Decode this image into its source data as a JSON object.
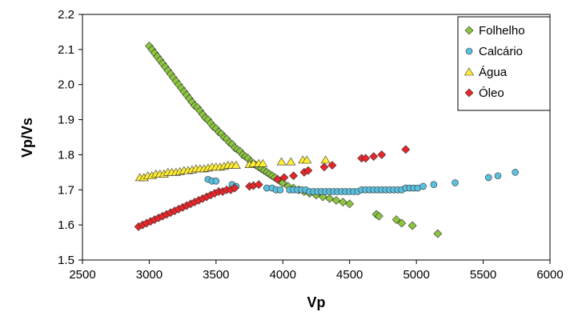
{
  "chart_data": {
    "type": "scatter",
    "title": "",
    "xlabel": "Vp",
    "ylabel": "Vp/Vs",
    "xlim": [
      2500,
      6000
    ],
    "ylim": [
      1.5,
      2.2
    ],
    "x_ticks": [
      "2500",
      "3000",
      "3500",
      "4000",
      "4500",
      "5000",
      "5500",
      "6000"
    ],
    "y_ticks": [
      "1.5",
      "1.6",
      "1.7",
      "1.8",
      "1.9",
      "2.0",
      "2.1",
      "2.2"
    ],
    "grid": false,
    "legend_position": "top-right",
    "series": [
      {
        "name": "Folhelho",
        "marker": "diamond",
        "color": "#8cc63f",
        "points": [
          [
            3000,
            2.11
          ],
          [
            3020,
            2.1
          ],
          [
            3040,
            2.09
          ],
          [
            3060,
            2.08
          ],
          [
            3080,
            2.07
          ],
          [
            3100,
            2.06
          ],
          [
            3120,
            2.05
          ],
          [
            3140,
            2.04
          ],
          [
            3160,
            2.03
          ],
          [
            3180,
            2.02
          ],
          [
            3200,
            2.01
          ],
          [
            3220,
            2.0
          ],
          [
            3240,
            1.99
          ],
          [
            3260,
            1.98
          ],
          [
            3280,
            1.97
          ],
          [
            3300,
            1.96
          ],
          [
            3320,
            1.95
          ],
          [
            3340,
            1.94
          ],
          [
            3360,
            1.935
          ],
          [
            3380,
            1.925
          ],
          [
            3400,
            1.915
          ],
          [
            3420,
            1.905
          ],
          [
            3440,
            1.9
          ],
          [
            3460,
            1.89
          ],
          [
            3480,
            1.88
          ],
          [
            3500,
            1.875
          ],
          [
            3520,
            1.865
          ],
          [
            3540,
            1.86
          ],
          [
            3560,
            1.85
          ],
          [
            3580,
            1.845
          ],
          [
            3600,
            1.835
          ],
          [
            3620,
            1.83
          ],
          [
            3640,
            1.82
          ],
          [
            3660,
            1.815
          ],
          [
            3680,
            1.81
          ],
          [
            3700,
            1.8
          ],
          [
            3720,
            1.795
          ],
          [
            3740,
            1.79
          ],
          [
            3760,
            1.78
          ],
          [
            3780,
            1.775
          ],
          [
            3800,
            1.77
          ],
          [
            3820,
            1.765
          ],
          [
            3840,
            1.76
          ],
          [
            3860,
            1.755
          ],
          [
            3880,
            1.75
          ],
          [
            3900,
            1.745
          ],
          [
            3920,
            1.74
          ],
          [
            3940,
            1.735
          ],
          [
            3960,
            1.73
          ],
          [
            3980,
            1.725
          ],
          [
            4000,
            1.72
          ],
          [
            4040,
            1.71
          ],
          [
            4080,
            1.705
          ],
          [
            4120,
            1.7
          ],
          [
            4160,
            1.695
          ],
          [
            4200,
            1.69
          ],
          [
            4250,
            1.685
          ],
          [
            4300,
            1.68
          ],
          [
            4350,
            1.675
          ],
          [
            4400,
            1.67
          ],
          [
            4450,
            1.665
          ],
          [
            4500,
            1.66
          ],
          [
            4700,
            1.63
          ],
          [
            4720,
            1.625
          ],
          [
            4850,
            1.615
          ],
          [
            4890,
            1.605
          ],
          [
            4970,
            1.598
          ],
          [
            5160,
            1.575
          ]
        ]
      },
      {
        "name": "Calcário",
        "marker": "circle",
        "color": "#5bc0de",
        "points": [
          [
            3440,
            1.73
          ],
          [
            3470,
            1.725
          ],
          [
            3500,
            1.725
          ],
          [
            3620,
            1.715
          ],
          [
            3650,
            1.71
          ],
          [
            3880,
            1.705
          ],
          [
            3920,
            1.705
          ],
          [
            3950,
            1.7
          ],
          [
            3980,
            1.7
          ],
          [
            4050,
            1.7
          ],
          [
            4080,
            1.7
          ],
          [
            4110,
            1.7
          ],
          [
            4140,
            1.7
          ],
          [
            4170,
            1.7
          ],
          [
            4200,
            1.695
          ],
          [
            4230,
            1.695
          ],
          [
            4260,
            1.695
          ],
          [
            4290,
            1.695
          ],
          [
            4320,
            1.695
          ],
          [
            4350,
            1.695
          ],
          [
            4380,
            1.695
          ],
          [
            4410,
            1.695
          ],
          [
            4440,
            1.695
          ],
          [
            4470,
            1.695
          ],
          [
            4500,
            1.695
          ],
          [
            4530,
            1.695
          ],
          [
            4560,
            1.695
          ],
          [
            4590,
            1.7
          ],
          [
            4620,
            1.7
          ],
          [
            4650,
            1.7
          ],
          [
            4680,
            1.7
          ],
          [
            4710,
            1.7
          ],
          [
            4740,
            1.7
          ],
          [
            4770,
            1.7
          ],
          [
            4800,
            1.7
          ],
          [
            4830,
            1.7
          ],
          [
            4860,
            1.7
          ],
          [
            4890,
            1.7
          ],
          [
            4920,
            1.705
          ],
          [
            4950,
            1.705
          ],
          [
            4980,
            1.705
          ],
          [
            5010,
            1.705
          ],
          [
            5050,
            1.71
          ],
          [
            5130,
            1.715
          ],
          [
            5290,
            1.72
          ],
          [
            5540,
            1.735
          ],
          [
            5610,
            1.74
          ],
          [
            5740,
            1.75
          ]
        ]
      },
      {
        "name": "Água",
        "marker": "triangle",
        "color": "#ffee33",
        "points": [
          [
            2930,
            1.735
          ],
          [
            2960,
            1.735
          ],
          [
            2990,
            1.74
          ],
          [
            3020,
            1.74
          ],
          [
            3050,
            1.745
          ],
          [
            3080,
            1.745
          ],
          [
            3110,
            1.745
          ],
          [
            3140,
            1.75
          ],
          [
            3170,
            1.75
          ],
          [
            3200,
            1.75
          ],
          [
            3230,
            1.752
          ],
          [
            3260,
            1.755
          ],
          [
            3290,
            1.755
          ],
          [
            3320,
            1.757
          ],
          [
            3350,
            1.76
          ],
          [
            3380,
            1.76
          ],
          [
            3410,
            1.76
          ],
          [
            3440,
            1.762
          ],
          [
            3470,
            1.765
          ],
          [
            3500,
            1.765
          ],
          [
            3530,
            1.765
          ],
          [
            3560,
            1.767
          ],
          [
            3590,
            1.77
          ],
          [
            3620,
            1.77
          ],
          [
            3650,
            1.77
          ],
          [
            3750,
            1.772
          ],
          [
            3780,
            1.775
          ],
          [
            3820,
            1.775
          ],
          [
            3850,
            1.775
          ],
          [
            3990,
            1.78
          ],
          [
            4060,
            1.78
          ],
          [
            4150,
            1.785
          ],
          [
            4180,
            1.785
          ],
          [
            4320,
            1.785
          ]
        ]
      },
      {
        "name": "Óleo",
        "marker": "diamond",
        "color": "#e8262a",
        "points": [
          [
            2920,
            1.595
          ],
          [
            2950,
            1.6
          ],
          [
            2980,
            1.605
          ],
          [
            3010,
            1.61
          ],
          [
            3040,
            1.615
          ],
          [
            3070,
            1.62
          ],
          [
            3100,
            1.625
          ],
          [
            3130,
            1.63
          ],
          [
            3160,
            1.635
          ],
          [
            3190,
            1.64
          ],
          [
            3220,
            1.645
          ],
          [
            3250,
            1.65
          ],
          [
            3280,
            1.655
          ],
          [
            3310,
            1.66
          ],
          [
            3340,
            1.665
          ],
          [
            3370,
            1.67
          ],
          [
            3400,
            1.675
          ],
          [
            3430,
            1.68
          ],
          [
            3460,
            1.685
          ],
          [
            3490,
            1.69
          ],
          [
            3520,
            1.695
          ],
          [
            3550,
            1.695
          ],
          [
            3580,
            1.7
          ],
          [
            3610,
            1.7
          ],
          [
            3640,
            1.705
          ],
          [
            3750,
            1.71
          ],
          [
            3780,
            1.712
          ],
          [
            3820,
            1.715
          ],
          [
            3960,
            1.73
          ],
          [
            4010,
            1.735
          ],
          [
            4080,
            1.74
          ],
          [
            4160,
            1.75
          ],
          [
            4190,
            1.755
          ],
          [
            4310,
            1.765
          ],
          [
            4370,
            1.77
          ],
          [
            4590,
            1.79
          ],
          [
            4620,
            1.79
          ],
          [
            4680,
            1.795
          ],
          [
            4740,
            1.8
          ],
          [
            4920,
            1.815
          ]
        ]
      }
    ]
  }
}
